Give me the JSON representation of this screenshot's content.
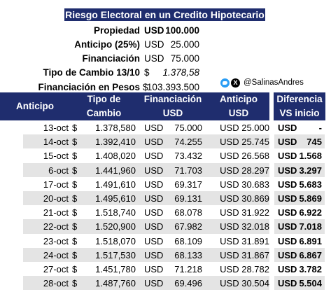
{
  "title": "Riesgo Electoral en un Credito Hipotecario",
  "info": [
    {
      "label": "Propiedad",
      "currency": "USD",
      "value": "100.000",
      "bold_value": true
    },
    {
      "label": "Anticipo (25%)",
      "currency": "USD",
      "value": "25.000",
      "bold_value": false
    },
    {
      "label": "Financiación",
      "currency": "USD",
      "value": "75.000",
      "bold_value": false
    },
    {
      "label": "Tipo de Cambio 13/10",
      "currency": "$",
      "value": "1.378,58",
      "bold_value": false,
      "italic": true
    },
    {
      "label": "Financiación en Pesos",
      "currency": "$",
      "value": "103.393.500",
      "bold_value": false
    }
  ],
  "social": {
    "handle": "@SalinasAndres",
    "icons": [
      "twitter-icon",
      "x-icon"
    ]
  },
  "headers": {
    "anticipo": "Anticipo",
    "tipo_line1": "Tipo de",
    "tipo_line2": "Cambio",
    "fin_line1": "Financiación",
    "fin_line2": "USD",
    "ant_line1": "Anticipo",
    "ant_line2": "USD",
    "dif_line1": "Diferencia",
    "dif_line2": "VS inicio"
  },
  "rows": [
    {
      "fecha": "13-oct",
      "peso": "$",
      "tc": "1.378,580",
      "fin_cur": "USD",
      "fin": "75.000",
      "ant": "USD 25.000",
      "dif_cur": "USD",
      "dif": "-"
    },
    {
      "fecha": "14-oct",
      "peso": "$",
      "tc": "1.392,410",
      "fin_cur": "USD",
      "fin": "74.255",
      "ant": "USD 25.745",
      "dif_cur": "USD",
      "dif": "745"
    },
    {
      "fecha": "15-oct",
      "peso": "$",
      "tc": "1.408,020",
      "fin_cur": "USD",
      "fin": "73.432",
      "ant": "USD 26.568",
      "dif_cur": "USD",
      "dif": "1.568"
    },
    {
      "fecha": "6-oct",
      "peso": "$",
      "tc": "1.441,960",
      "fin_cur": "USD",
      "fin": "71.703",
      "ant": "USD 28.297",
      "dif_cur": "USD",
      "dif": "3.297"
    },
    {
      "fecha": "17-oct",
      "peso": "$",
      "tc": "1.491,610",
      "fin_cur": "USD",
      "fin": "69.317",
      "ant": "USD 30.683",
      "dif_cur": "USD",
      "dif": "5.683"
    },
    {
      "fecha": "20-oct",
      "peso": "$",
      "tc": "1.495,610",
      "fin_cur": "USD",
      "fin": "69.131",
      "ant": "USD 30.869",
      "dif_cur": "USD",
      "dif": "5.869"
    },
    {
      "fecha": "21-oct",
      "peso": "$",
      "tc": "1.518,740",
      "fin_cur": "USD",
      "fin": "68.078",
      "ant": "USD 31.922",
      "dif_cur": "USD",
      "dif": "6.922"
    },
    {
      "fecha": "22-oct",
      "peso": "$",
      "tc": "1.520,900",
      "fin_cur": "USD",
      "fin": "67.982",
      "ant": "USD 32.018",
      "dif_cur": "USD",
      "dif": "7.018"
    },
    {
      "fecha": "23-oct",
      "peso": "$",
      "tc": "1.518,070",
      "fin_cur": "USD",
      "fin": "68.109",
      "ant": "USD 31.891",
      "dif_cur": "USD",
      "dif": "6.891"
    },
    {
      "fecha": "24-oct",
      "peso": "$",
      "tc": "1.517,530",
      "fin_cur": "USD",
      "fin": "68.133",
      "ant": "USD 31.867",
      "dif_cur": "USD",
      "dif": "6.867"
    },
    {
      "fecha": "27-oct",
      "peso": "$",
      "tc": "1.451,780",
      "fin_cur": "USD",
      "fin": "71.218",
      "ant": "USD 28.782",
      "dif_cur": "USD",
      "dif": "3.782"
    },
    {
      "fecha": "28-oct",
      "peso": "$",
      "tc": "1.487,760",
      "fin_cur": "USD",
      "fin": "69.496",
      "ant": "USD 30.504",
      "dif_cur": "USD",
      "dif": "5.504"
    }
  ],
  "colors": {
    "header_bg": "#1f2d6e",
    "band": "#e4e4e4"
  }
}
